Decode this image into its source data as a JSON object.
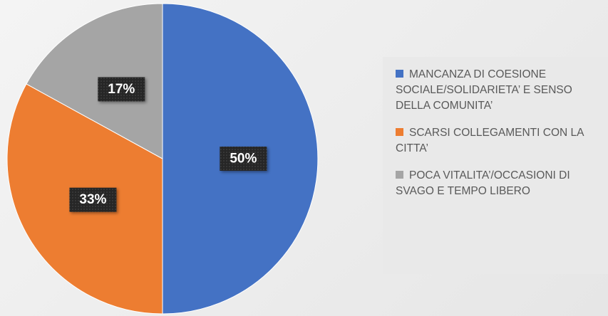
{
  "chart_data": {
    "type": "pie",
    "categories": [
      "MANCANZA DI COESIONE SOCIALE/SOLIDARIETA’ E SENSO DELLA COMUNITA’",
      "SCARSI COLLEGAMENTI CON LA CITTA’",
      "POCA VITALITA’/OCCASIONI DI SVAGO E TEMPO LIBERO"
    ],
    "values": [
      50,
      33,
      17
    ],
    "value_labels": [
      "50%",
      "33%",
      "17%"
    ],
    "colors": [
      "#4472c4",
      "#ed7d31",
      "#a5a5a5"
    ],
    "legend": "right"
  }
}
